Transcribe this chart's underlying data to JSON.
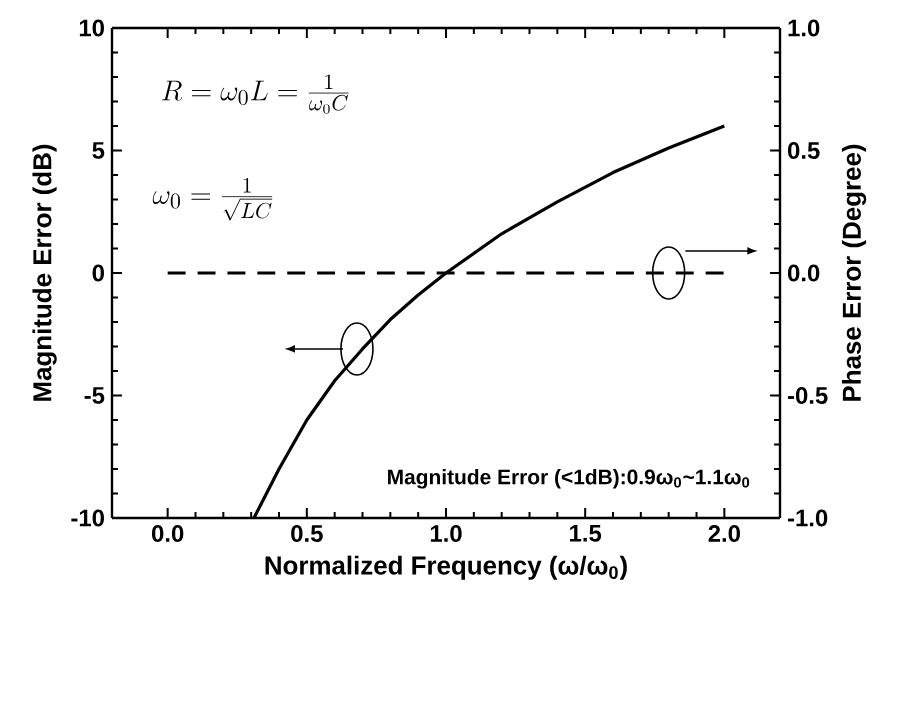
{
  "chart_data": {
    "type": "line",
    "xlabel": "Normalized Frequency (ω/ω$_{0}$)",
    "ylabel": "Magnitude Error (dB)",
    "y2label": "Phase Error (Degree)",
    "xlim": [
      -0.2,
      2.2
    ],
    "xticks": [
      {
        "value": 0,
        "label": "0.0"
      },
      {
        "value": 0.5,
        "label": "0.5"
      },
      {
        "value": 1,
        "label": "1.0"
      },
      {
        "value": 1.5,
        "label": "1.5"
      },
      {
        "value": 2,
        "label": "2.0"
      }
    ],
    "ylim": [
      -10,
      10
    ],
    "yticks": [
      -10,
      -5,
      0,
      5,
      10
    ],
    "y2lim": [
      -1,
      1
    ],
    "y2ticks": [
      {
        "value": -1,
        "label": "-1.0"
      },
      {
        "value": -0.5,
        "label": "-0.5"
      },
      {
        "value": 0,
        "label": "0.0"
      },
      {
        "value": 0.5,
        "label": "0.5"
      },
      {
        "value": 1,
        "label": "1.0"
      }
    ],
    "series": [
      {
        "color": "#000000",
        "line_style": "solid",
        "x": [
          0.31,
          0.4,
          0.5,
          0.6,
          0.7,
          0.8,
          0.9,
          1.0,
          1.2,
          1.4,
          1.6,
          1.8,
          2.0
        ],
        "values": [
          -10,
          -8,
          -6,
          -4.4,
          -3.1,
          -1.9,
          -0.9,
          0,
          1.6,
          2.9,
          4.1,
          5.1,
          6.0
        ]
      },
      {
        "color": "#000000",
        "line_style": "dashed",
        "axis": "y2",
        "x": [
          0,
          2.0
        ],
        "values": [
          0,
          0
        ]
      }
    ],
    "annotations": [
      "R=\\omega_0 L=\\frac{1}{\\omega_0 C}",
      "\\omega_0=\\frac{1}{\\sqrt{LC}}",
      "Magnitude Error (<1dB):0.9ω$_{0}$~1.1ω$_{0}$"
    ]
  }
}
